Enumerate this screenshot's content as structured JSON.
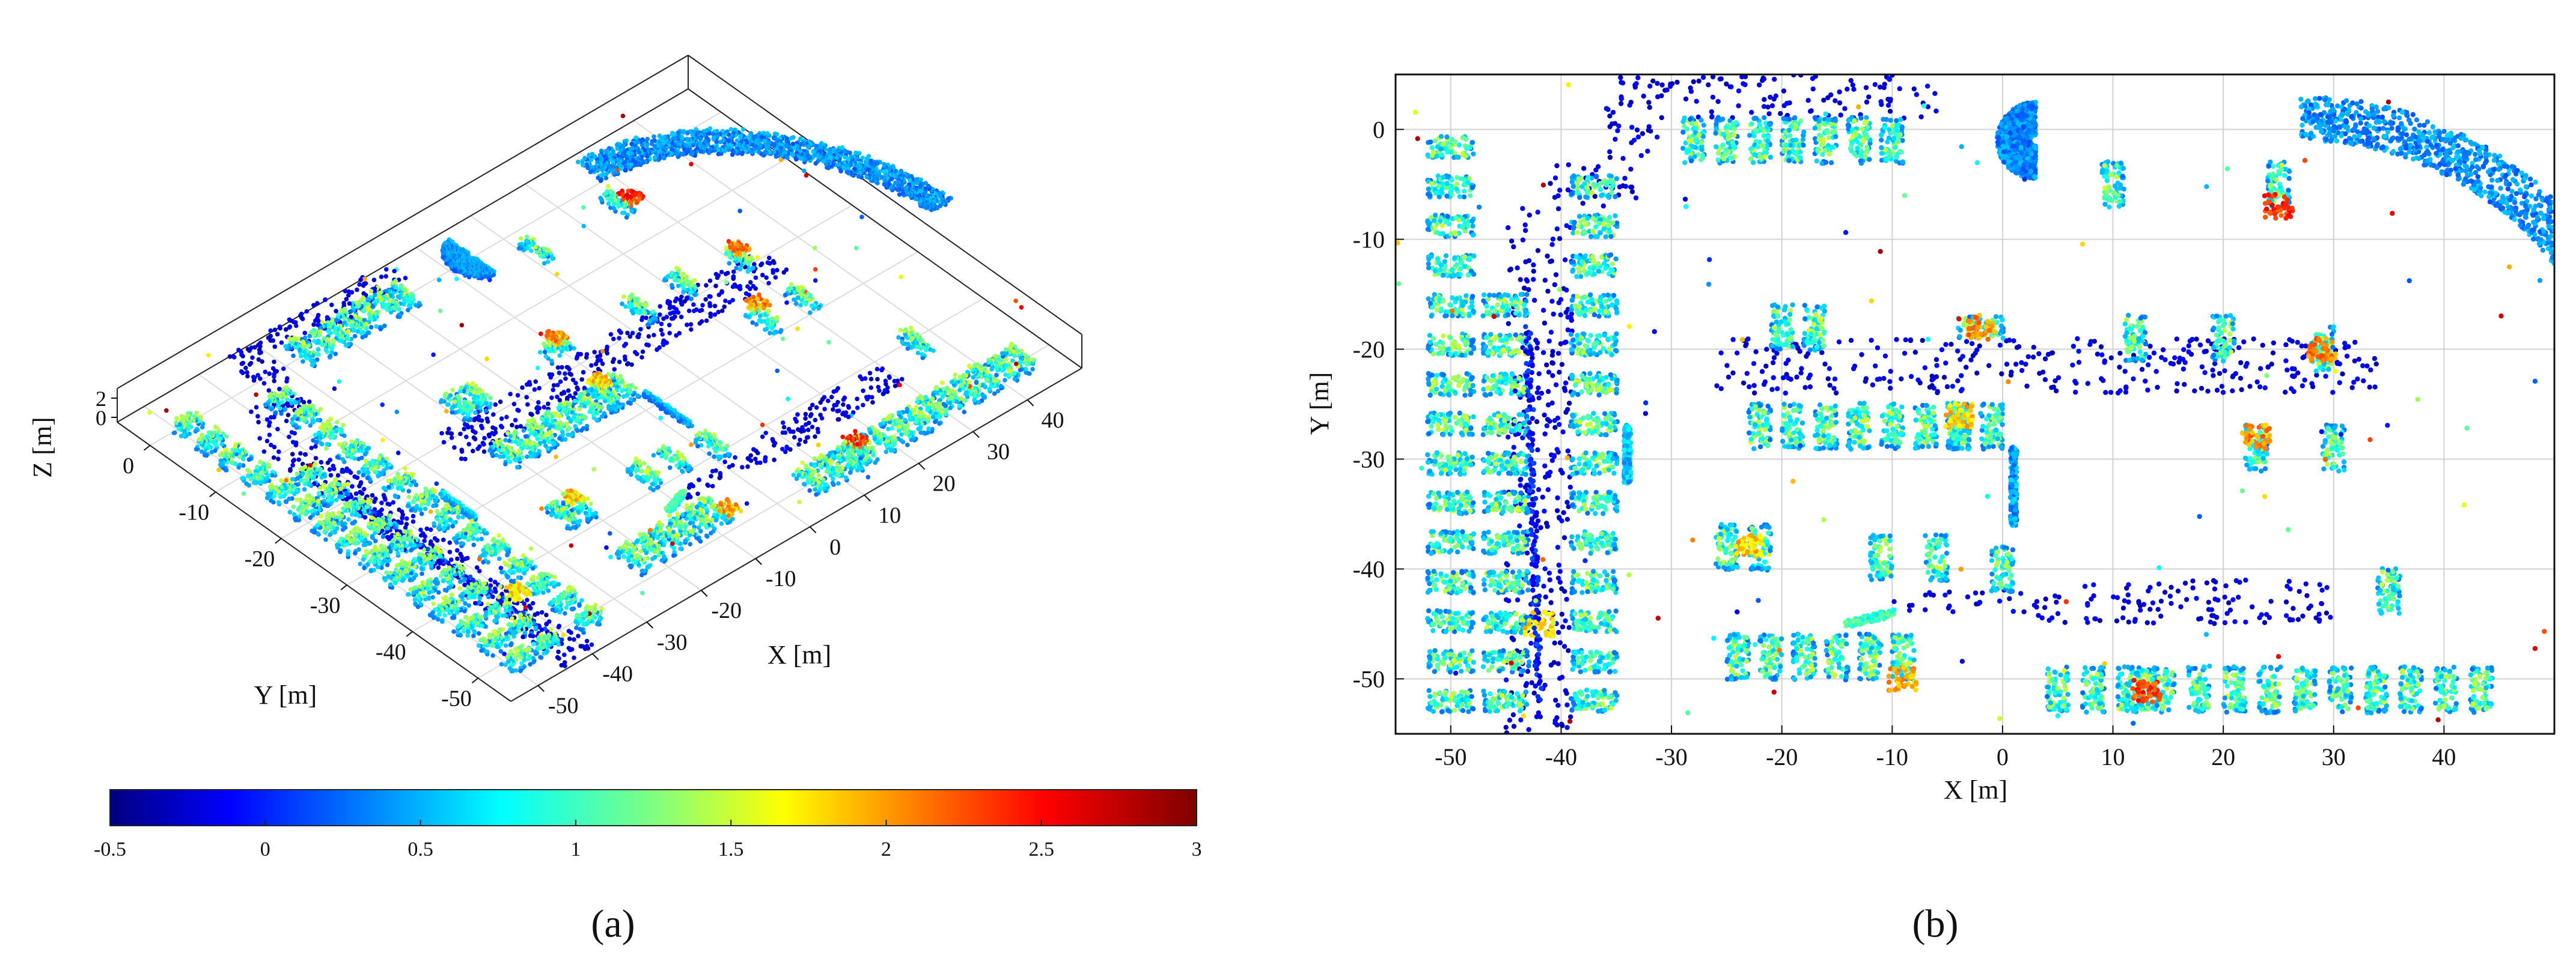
{
  "chart_data": [
    {
      "panel": "a",
      "type": "scatter",
      "subtype": "3d-point-cloud",
      "panel_label": "(a)",
      "xlabel": "X [m]",
      "ylabel": "Y [m]",
      "zlabel": "Z [m]",
      "xlim": [
        -55,
        50
      ],
      "ylim": [
        -55,
        5
      ],
      "zlim": [
        -0.5,
        3
      ],
      "x_ticks": [
        -50,
        -40,
        -30,
        -20,
        -10,
        0,
        10,
        20,
        30,
        40
      ],
      "y_ticks": [
        -50,
        -40,
        -30,
        -20,
        -10,
        0
      ],
      "z_ticks": [
        0,
        2
      ],
      "grid": true,
      "colorbar": {
        "min": -0.5,
        "max": 3,
        "ticks": [
          -0.5,
          0,
          0.5,
          1,
          1.5,
          2,
          2.5,
          3
        ],
        "tick_labels": [
          "-0.5",
          "0",
          "0.5",
          "1",
          "1.5",
          "2",
          "2.5",
          "3"
        ],
        "colormap": "jet",
        "placement": "bottom"
      }
    },
    {
      "panel": "b",
      "type": "scatter",
      "subtype": "top-view-point-cloud",
      "panel_label": "(b)",
      "xlabel": "X [m]",
      "ylabel": "Y [m]",
      "xlim": [
        -55,
        50
      ],
      "ylim": [
        -55,
        5
      ],
      "x_ticks": [
        -50,
        -40,
        -30,
        -20,
        -10,
        0,
        10,
        20,
        30,
        40
      ],
      "y_ticks": [
        0,
        -10,
        -20,
        -30,
        -40,
        -50
      ],
      "grid": true,
      "color_by": "height (Z)"
    }
  ],
  "scene": {
    "roads": [
      {
        "x0": -45,
        "x1": -39,
        "y0": -55,
        "y1": -7
      },
      {
        "x0": -41,
        "x1": -33,
        "y0": -7,
        "y1": -3
      },
      {
        "x0": -36,
        "x1": -31,
        "y0": -3,
        "y1": 5
      },
      {
        "x0": -31,
        "x1": -6,
        "y0": 1,
        "y1": 5
      },
      {
        "x0": -26,
        "x1": 34,
        "y0": -24,
        "y1": -19
      },
      {
        "x0": 0,
        "x1": 30,
        "y0": -41,
        "y1": -45
      },
      {
        "x0": -10,
        "x1": 0,
        "y0": -42,
        "y1": -44
      }
    ],
    "arcs": [
      {
        "cx": 27,
        "cy": -30,
        "r_outer": 33,
        "r_inner": 29,
        "a0": 90,
        "a1": 5
      },
      {
        "cx": 3,
        "cy": -1,
        "r_outer": 3.5,
        "r_inner": 0.5,
        "a0": 90,
        "a1": 270
      }
    ],
    "car_rows": [
      {
        "x": -50,
        "y0": -52,
        "y1": 0,
        "step": 3.6,
        "o": "h"
      },
      {
        "x": -45,
        "y0": -52,
        "y1": -15,
        "step": 3.6,
        "o": "h"
      },
      {
        "x": -37,
        "y0": -52,
        "y1": -4,
        "step": 3.6,
        "o": "h"
      },
      {
        "y": -1,
        "x0": -28,
        "x1": -8,
        "step": 3,
        "o": "v"
      },
      {
        "y": -27,
        "x0": -22,
        "x1": 0,
        "step": 3,
        "o": "v"
      },
      {
        "y": -48,
        "x0": -24,
        "x1": -8,
        "step": 3,
        "o": "v"
      },
      {
        "y": -51,
        "x0": 5,
        "x1": 44,
        "step": 3.2,
        "o": "v"
      }
    ],
    "cars": [
      [
        10,
        -5,
        "v"
      ],
      [
        25,
        -5,
        "v"
      ],
      [
        -20,
        -18,
        "v"
      ],
      [
        -17,
        -18,
        "v"
      ],
      [
        12,
        -19,
        "v"
      ],
      [
        20,
        -19,
        "v"
      ],
      [
        29,
        -20,
        "v"
      ],
      [
        -2,
        -18,
        "h"
      ],
      [
        23,
        -29,
        "v"
      ],
      [
        30,
        -29,
        "v"
      ],
      [
        -25,
        -38,
        "v"
      ],
      [
        -22,
        -38,
        "v"
      ],
      [
        -11,
        -39,
        "v"
      ],
      [
        -6,
        -39,
        "v"
      ],
      [
        0,
        -40,
        "v"
      ],
      [
        35,
        -42,
        "v"
      ],
      [
        -4,
        -27,
        "v"
      ],
      [
        13,
        -51,
        "v"
      ]
    ],
    "hot_spots": [
      [
        25,
        -7,
        2.7
      ],
      [
        -2,
        -18,
        2.3
      ],
      [
        13,
        -51,
        2.6
      ],
      [
        -9,
        -50,
        2.2
      ],
      [
        -42,
        -45,
        2.0
      ],
      [
        -23,
        -38,
        2.1
      ],
      [
        29,
        -20,
        2.4
      ],
      [
        23,
        -28,
        2.3
      ],
      [
        -4,
        -26,
        2.1
      ]
    ],
    "streaks": [
      [
        -43,
        -18,
        -42,
        -52,
        0.0
      ],
      [
        -14,
        -45,
        -10,
        -44,
        1.0
      ],
      [
        -34,
        -32,
        -34,
        -27,
        0.6
      ],
      [
        1,
        -29,
        1,
        -36,
        0.5
      ]
    ]
  }
}
